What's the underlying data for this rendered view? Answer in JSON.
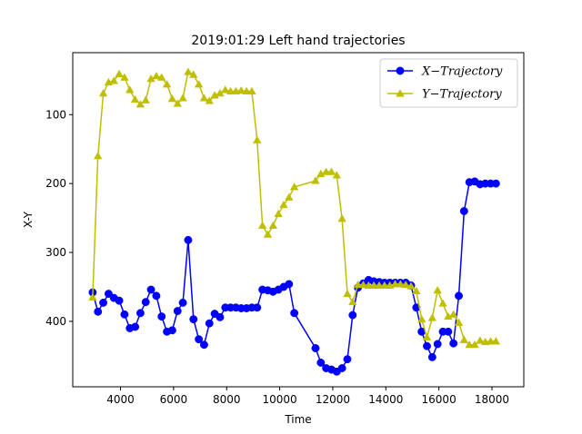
{
  "chart_data": {
    "type": "line",
    "title": "2019:01:29 Left hand trajectories",
    "xlabel": "Time",
    "ylabel": "X-Y",
    "xlim": [
      2200,
      19200
    ],
    "ylim": [
      495,
      10
    ],
    "y_inverted": true,
    "grid": false,
    "legend_position": "top-right",
    "x_ticks": [
      4000,
      6000,
      8000,
      10000,
      12000,
      14000,
      16000,
      18000
    ],
    "y_ticks": [
      100,
      200,
      300,
      400
    ],
    "series": [
      {
        "name": "X−Trajectory",
        "color": "#0000ff",
        "marker": "circle",
        "x": [
          2950,
          3150,
          3350,
          3550,
          3750,
          3950,
          4150,
          4350,
          4550,
          4750,
          4950,
          5150,
          5350,
          5550,
          5750,
          5950,
          6150,
          6350,
          6550,
          6750,
          6950,
          7150,
          7350,
          7550,
          7750,
          7950,
          8150,
          8350,
          8550,
          8750,
          8950,
          9150,
          9350,
          9550,
          9750,
          9950,
          10150,
          10350,
          10550,
          11350,
          11550,
          11750,
          11950,
          12150,
          12350,
          12550,
          12750,
          12950,
          13150,
          13350,
          13550,
          13750,
          13950,
          14150,
          14350,
          14550,
          14750,
          14950,
          15150,
          15350,
          15550,
          15750,
          15950,
          16150,
          16350,
          16550,
          16750,
          16950,
          17150,
          17350,
          17550,
          17750,
          17950,
          18150
        ],
        "y": [
          358,
          386,
          373,
          360,
          366,
          370,
          390,
          410,
          408,
          388,
          372,
          354,
          363,
          393,
          415,
          413,
          385,
          373,
          282,
          397,
          426,
          434,
          403,
          389,
          394,
          380,
          380,
          380,
          381,
          381,
          380,
          380,
          354,
          355,
          357,
          354,
          350,
          346,
          388,
          439,
          460,
          468,
          470,
          473,
          468,
          455,
          391,
          351,
          345,
          340,
          342,
          343,
          344,
          344,
          344,
          344,
          344,
          348,
          380,
          415,
          436,
          452,
          433,
          415,
          415,
          432,
          363,
          240,
          198,
          197,
          201,
          200,
          200,
          200
        ]
      },
      {
        "name": "Y−Trajectory",
        "color": "#bfbf00",
        "marker": "triangle",
        "x": [
          2950,
          3150,
          3350,
          3550,
          3750,
          3950,
          4150,
          4350,
          4550,
          4750,
          4950,
          5150,
          5350,
          5550,
          5750,
          5950,
          6150,
          6350,
          6550,
          6750,
          6950,
          7150,
          7350,
          7550,
          7750,
          7950,
          8150,
          8350,
          8550,
          8750,
          8950,
          9150,
          9350,
          9550,
          9750,
          9950,
          10150,
          10350,
          10550,
          11350,
          11550,
          11750,
          11950,
          12150,
          12350,
          12550,
          12750,
          12950,
          13150,
          13350,
          13550,
          13750,
          13950,
          14150,
          14350,
          14550,
          14750,
          14950,
          15150,
          15350,
          15550,
          15750,
          15950,
          16150,
          16350,
          16550,
          16750,
          16950,
          17150,
          17350,
          17550,
          17750,
          17950,
          18150
        ],
        "y": [
          365,
          160,
          69,
          53,
          51,
          41,
          46,
          64,
          78,
          85,
          79,
          48,
          44,
          46,
          56,
          77,
          84,
          76,
          38,
          42,
          56,
          76,
          80,
          72,
          69,
          64,
          66,
          66,
          65,
          66,
          66,
          137,
          261,
          274,
          261,
          244,
          231,
          220,
          205,
          196,
          186,
          183,
          183,
          188,
          251,
          360,
          372,
          347,
          347,
          348,
          348,
          348,
          348,
          348,
          346,
          346,
          347,
          349,
          356,
          397,
          423,
          395,
          355,
          374,
          393,
          390,
          402,
          427,
          434,
          434,
          428,
          430,
          429,
          429
        ]
      }
    ]
  }
}
